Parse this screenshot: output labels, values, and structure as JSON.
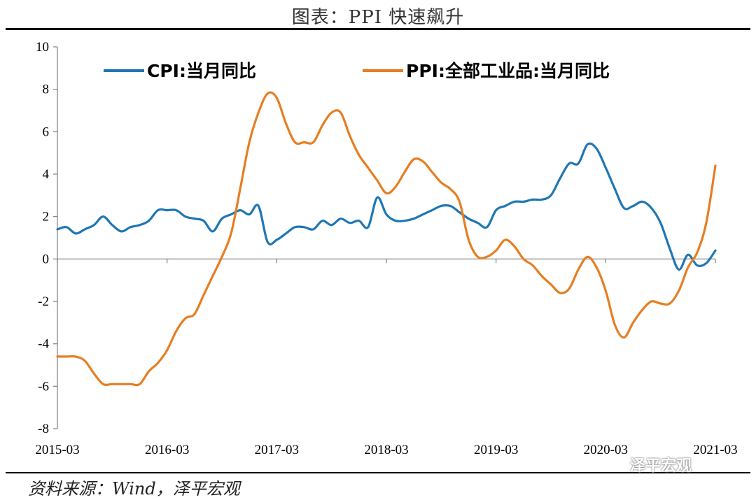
{
  "title": "图表：PPI 快速飙升",
  "source": "资料来源：Wind，泽平宏观",
  "watermark": "泽平宏观",
  "chart_data": {
    "type": "line",
    "title": "图表：PPI 快速飙升",
    "xlabel": "",
    "ylabel": "",
    "ylim": [
      -8,
      10
    ],
    "yticks": [
      -8,
      -6,
      -4,
      -2,
      0,
      2,
      4,
      6,
      8,
      10
    ],
    "xticks": [
      "2015-03",
      "2016-03",
      "2017-03",
      "2018-03",
      "2019-03",
      "2020-03",
      "2021-03"
    ],
    "legend": "top",
    "grid": false,
    "x": [
      "2015-03",
      "2015-04",
      "2015-05",
      "2015-06",
      "2015-07",
      "2015-08",
      "2015-09",
      "2015-10",
      "2015-11",
      "2015-12",
      "2016-01",
      "2016-02",
      "2016-03",
      "2016-04",
      "2016-05",
      "2016-06",
      "2016-07",
      "2016-08",
      "2016-09",
      "2016-10",
      "2016-11",
      "2016-12",
      "2017-01",
      "2017-02",
      "2017-03",
      "2017-04",
      "2017-05",
      "2017-06",
      "2017-07",
      "2017-08",
      "2017-09",
      "2017-10",
      "2017-11",
      "2017-12",
      "2018-01",
      "2018-02",
      "2018-03",
      "2018-04",
      "2018-05",
      "2018-06",
      "2018-07",
      "2018-08",
      "2018-09",
      "2018-10",
      "2018-11",
      "2018-12",
      "2019-01",
      "2019-02",
      "2019-03",
      "2019-04",
      "2019-05",
      "2019-06",
      "2019-07",
      "2019-08",
      "2019-09",
      "2019-10",
      "2019-11",
      "2019-12",
      "2020-01",
      "2020-02",
      "2020-03",
      "2020-04",
      "2020-05",
      "2020-06",
      "2020-07",
      "2020-08",
      "2020-09",
      "2020-10",
      "2020-11",
      "2020-12",
      "2021-01",
      "2021-02",
      "2021-03"
    ],
    "series": [
      {
        "name": "CPI:当月同比",
        "color": "#1f77b4",
        "values": [
          1.4,
          1.5,
          1.2,
          1.4,
          1.6,
          2.0,
          1.6,
          1.3,
          1.5,
          1.6,
          1.8,
          2.3,
          2.3,
          2.3,
          2.0,
          1.9,
          1.8,
          1.3,
          1.9,
          2.1,
          2.3,
          2.1,
          2.5,
          0.8,
          0.9,
          1.2,
          1.5,
          1.5,
          1.4,
          1.8,
          1.6,
          1.9,
          1.7,
          1.8,
          1.5,
          2.9,
          2.1,
          1.8,
          1.8,
          1.9,
          2.1,
          2.3,
          2.5,
          2.5,
          2.2,
          1.9,
          1.7,
          1.5,
          2.3,
          2.5,
          2.7,
          2.7,
          2.8,
          2.8,
          3.0,
          3.8,
          4.5,
          4.5,
          5.4,
          5.2,
          4.3,
          3.3,
          2.4,
          2.5,
          2.7,
          2.4,
          1.7,
          0.5,
          -0.5,
          0.2,
          -0.3,
          -0.2,
          0.4
        ]
      },
      {
        "name": "PPI:全部工业品:当月同比",
        "color": "#e67e22",
        "values": [
          -4.6,
          -4.6,
          -4.6,
          -4.8,
          -5.4,
          -5.9,
          -5.9,
          -5.9,
          -5.9,
          -5.9,
          -5.3,
          -4.9,
          -4.3,
          -3.4,
          -2.8,
          -2.6,
          -1.7,
          -0.8,
          0.1,
          1.2,
          3.3,
          5.5,
          6.9,
          7.8,
          7.6,
          6.4,
          5.5,
          5.5,
          5.5,
          6.3,
          6.9,
          6.9,
          5.8,
          4.9,
          4.3,
          3.7,
          3.1,
          3.4,
          4.1,
          4.7,
          4.6,
          4.1,
          3.6,
          3.3,
          2.7,
          0.9,
          0.1,
          0.1,
          0.4,
          0.9,
          0.6,
          0.0,
          -0.3,
          -0.8,
          -1.2,
          -1.6,
          -1.4,
          -0.5,
          0.1,
          -0.4,
          -1.5,
          -3.1,
          -3.7,
          -3.0,
          -2.4,
          -2.0,
          -2.1,
          -2.1,
          -1.5,
          -0.4,
          0.3,
          1.7,
          4.4
        ]
      }
    ]
  }
}
